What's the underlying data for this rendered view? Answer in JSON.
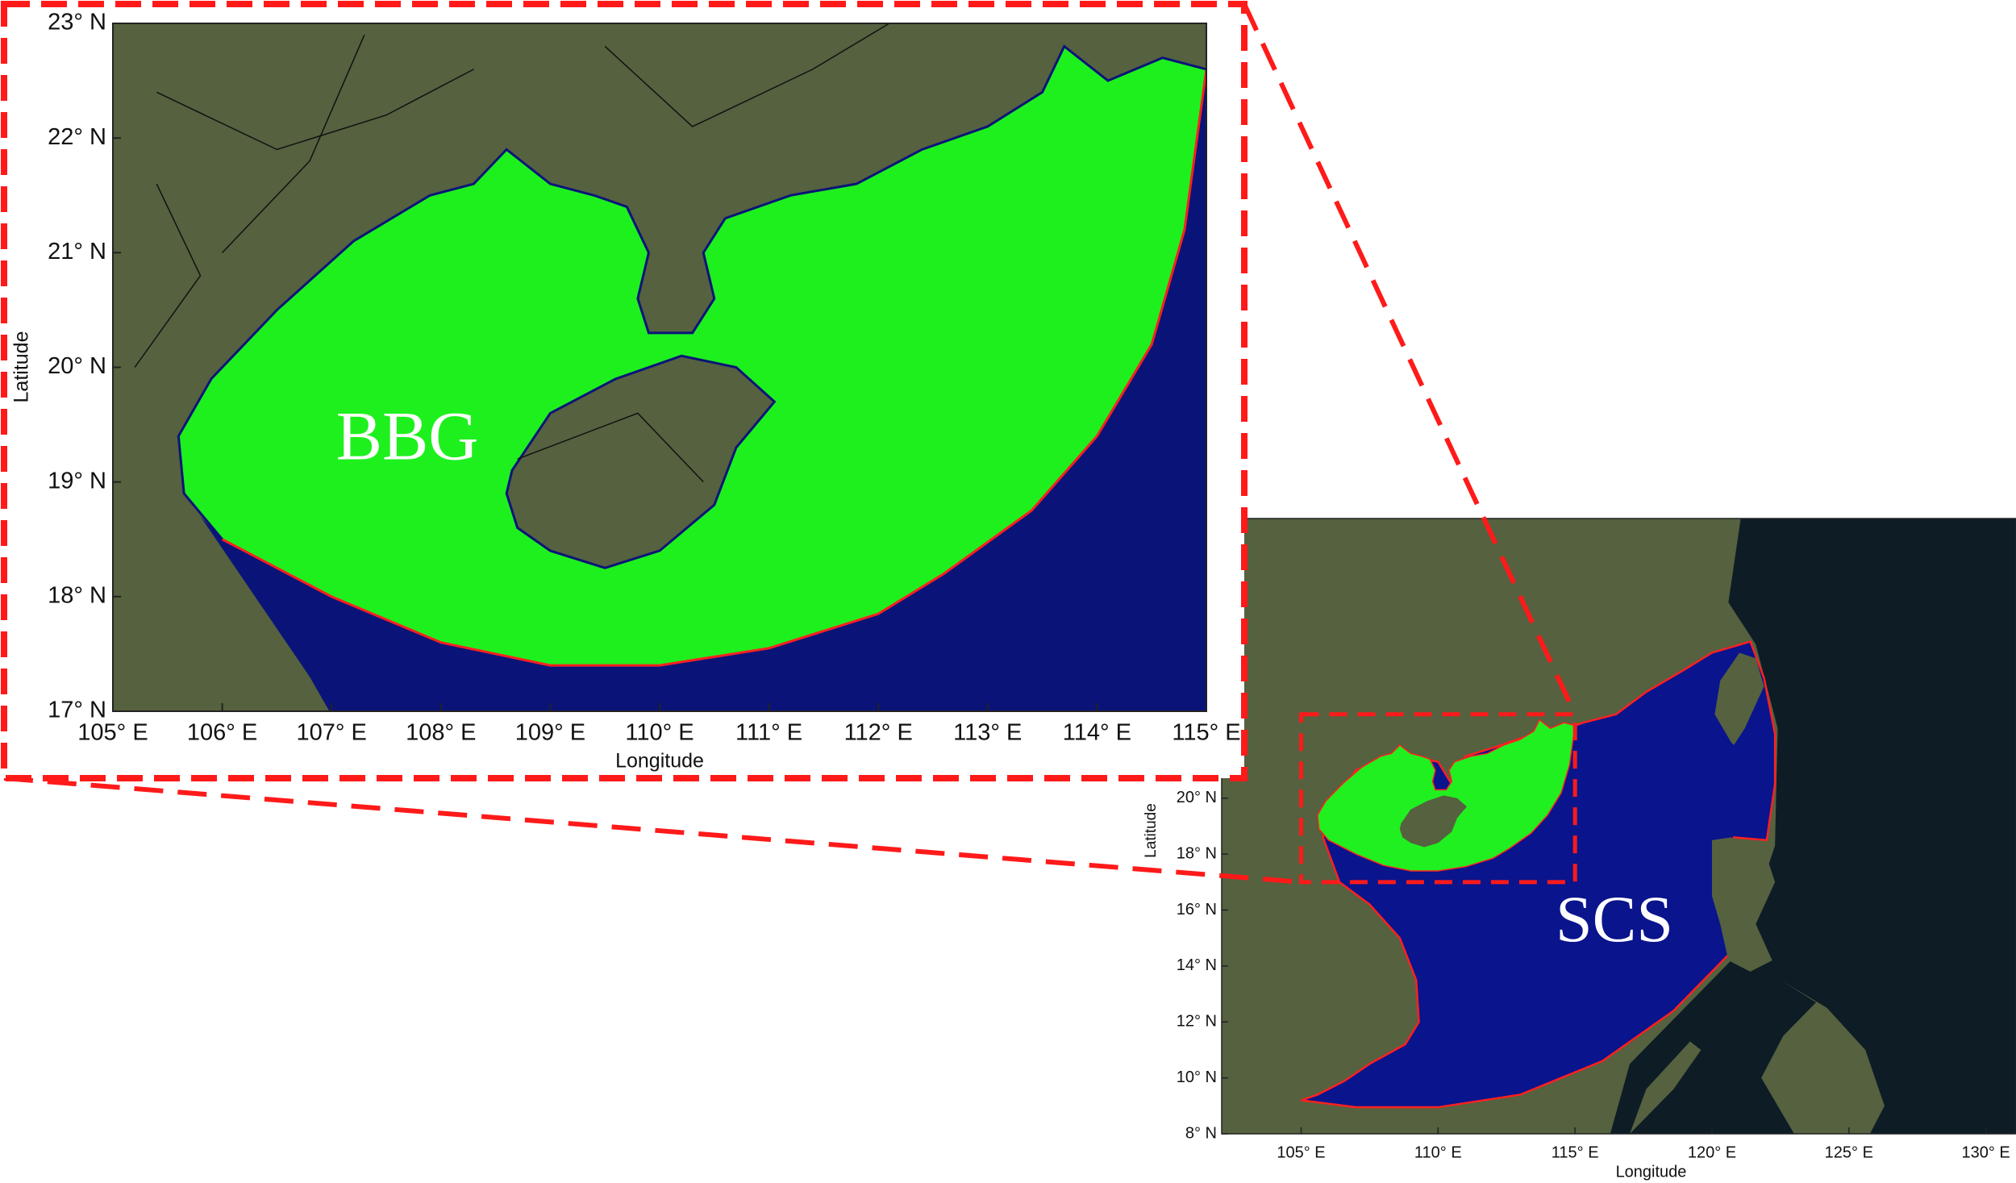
{
  "zoom_map": {
    "xlabel": "Longitude",
    "ylabel": "Latitude",
    "region_label": "BBG",
    "xlim": [
      105,
      115
    ],
    "ylim": [
      17,
      23
    ],
    "xticks": [
      {
        "value": 105,
        "label": "105° E"
      },
      {
        "value": 106,
        "label": "106° E"
      },
      {
        "value": 107,
        "label": "107° E"
      },
      {
        "value": 108,
        "label": "108° E"
      },
      {
        "value": 109,
        "label": "109° E"
      },
      {
        "value": 110,
        "label": "110° E"
      },
      {
        "value": 111,
        "label": "111° E"
      },
      {
        "value": 112,
        "label": "112° E"
      },
      {
        "value": 113,
        "label": "113° E"
      },
      {
        "value": 114,
        "label": "114° E"
      },
      {
        "value": 115,
        "label": "115° E"
      }
    ],
    "yticks": [
      {
        "value": 17,
        "label": "17° N"
      },
      {
        "value": 18,
        "label": "18° N"
      },
      {
        "value": 19,
        "label": "19° N"
      },
      {
        "value": 20,
        "label": "20° N"
      },
      {
        "value": 21,
        "label": "21° N"
      },
      {
        "value": 22,
        "label": "22° N"
      },
      {
        "value": 23,
        "label": "23° N"
      }
    ]
  },
  "overview_map": {
    "xlabel": "Longitude",
    "ylabel": "Latitude",
    "region_label": "SCS",
    "xlim": [
      102.1,
      131.1
    ],
    "ylim": [
      8,
      30
    ],
    "xticks": [
      {
        "value": 105,
        "label": "105° E"
      },
      {
        "value": 110,
        "label": "110° E"
      },
      {
        "value": 115,
        "label": "115° E"
      },
      {
        "value": 120,
        "label": "120° E"
      },
      {
        "value": 125,
        "label": "125° E"
      },
      {
        "value": 130,
        "label": "130° E"
      }
    ],
    "yticks": [
      {
        "value": 8,
        "label": "8° N"
      },
      {
        "value": 10,
        "label": "10° N"
      },
      {
        "value": 12,
        "label": "12° N"
      },
      {
        "value": 14,
        "label": "14° N"
      },
      {
        "value": 16,
        "label": "16° N"
      },
      {
        "value": 18,
        "label": "18° N"
      },
      {
        "value": 20,
        "label": "20° N"
      }
    ]
  }
}
